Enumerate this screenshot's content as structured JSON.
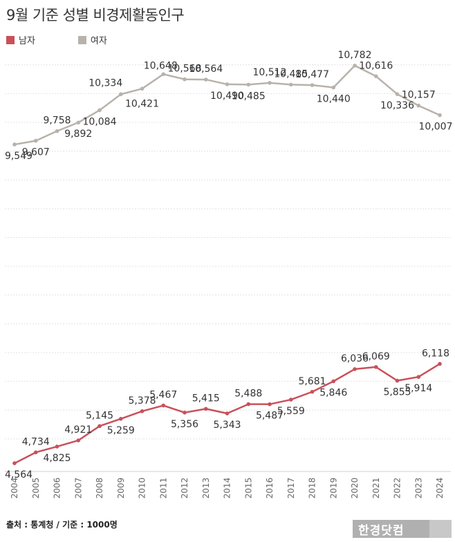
{
  "title": "9월 기준 성별 비경제활동인구",
  "footer": "출처 : 통계청 / 기준 : 1000명",
  "logo": "한경닷컴",
  "colors": {
    "male": "#c9505a",
    "female": "#b8b2ab",
    "grid": "#e2e2e2",
    "label": "#333333"
  },
  "chart_data": {
    "type": "line",
    "title": "9월 기준 성별 비경제활동인구",
    "x": [
      "2004",
      "2005",
      "2006",
      "2007",
      "2008",
      "2009",
      "2010",
      "2011",
      "2012",
      "2013",
      "2014",
      "2015",
      "2016",
      "2017",
      "2018",
      "2019",
      "2020",
      "2021",
      "2022",
      "2023",
      "2024"
    ],
    "ylim": [
      4500,
      10900
    ],
    "grid": true,
    "legend": "top-left",
    "series": [
      {
        "name": "남자",
        "color": "#c9505a",
        "values": [
          4564,
          4734,
          4825,
          4921,
          5145,
          5259,
          5378,
          5467,
          5356,
          5415,
          5343,
          5488,
          5487,
          5559,
          5681,
          5846,
          6036,
          6069,
          5855,
          5914,
          6118
        ],
        "labels": [
          "4,564",
          "4,734",
          "4,825",
          "4,921",
          "5,145",
          "5,259",
          "5,378",
          "5,467",
          "5,356",
          "5,415",
          "5,343",
          "5,488",
          "5,487",
          "5,559",
          "5,681",
          "5,846",
          "6,036",
          "6,069",
          "5,855",
          "5,914",
          "6,118"
        ]
      },
      {
        "name": "여자",
        "color": "#b8b2ab",
        "values": [
          9549,
          9607,
          9758,
          9892,
          10084,
          10334,
          10421,
          10648,
          10568,
          10564,
          10490,
          10485,
          10512,
          10485,
          10477,
          10440,
          10782,
          10616,
          10336,
          10157,
          10007
        ],
        "labels": [
          "9,549",
          "9,607",
          "9,758",
          "9,892",
          "10,084",
          "10,334",
          "10,421",
          "10,648",
          "10,568",
          "10,564",
          "10,490",
          "10,485",
          "10,512",
          "10,485",
          "10,477",
          "10,440",
          "10,782",
          "10,616",
          "10,336",
          "10,157",
          "10,007"
        ]
      }
    ]
  }
}
